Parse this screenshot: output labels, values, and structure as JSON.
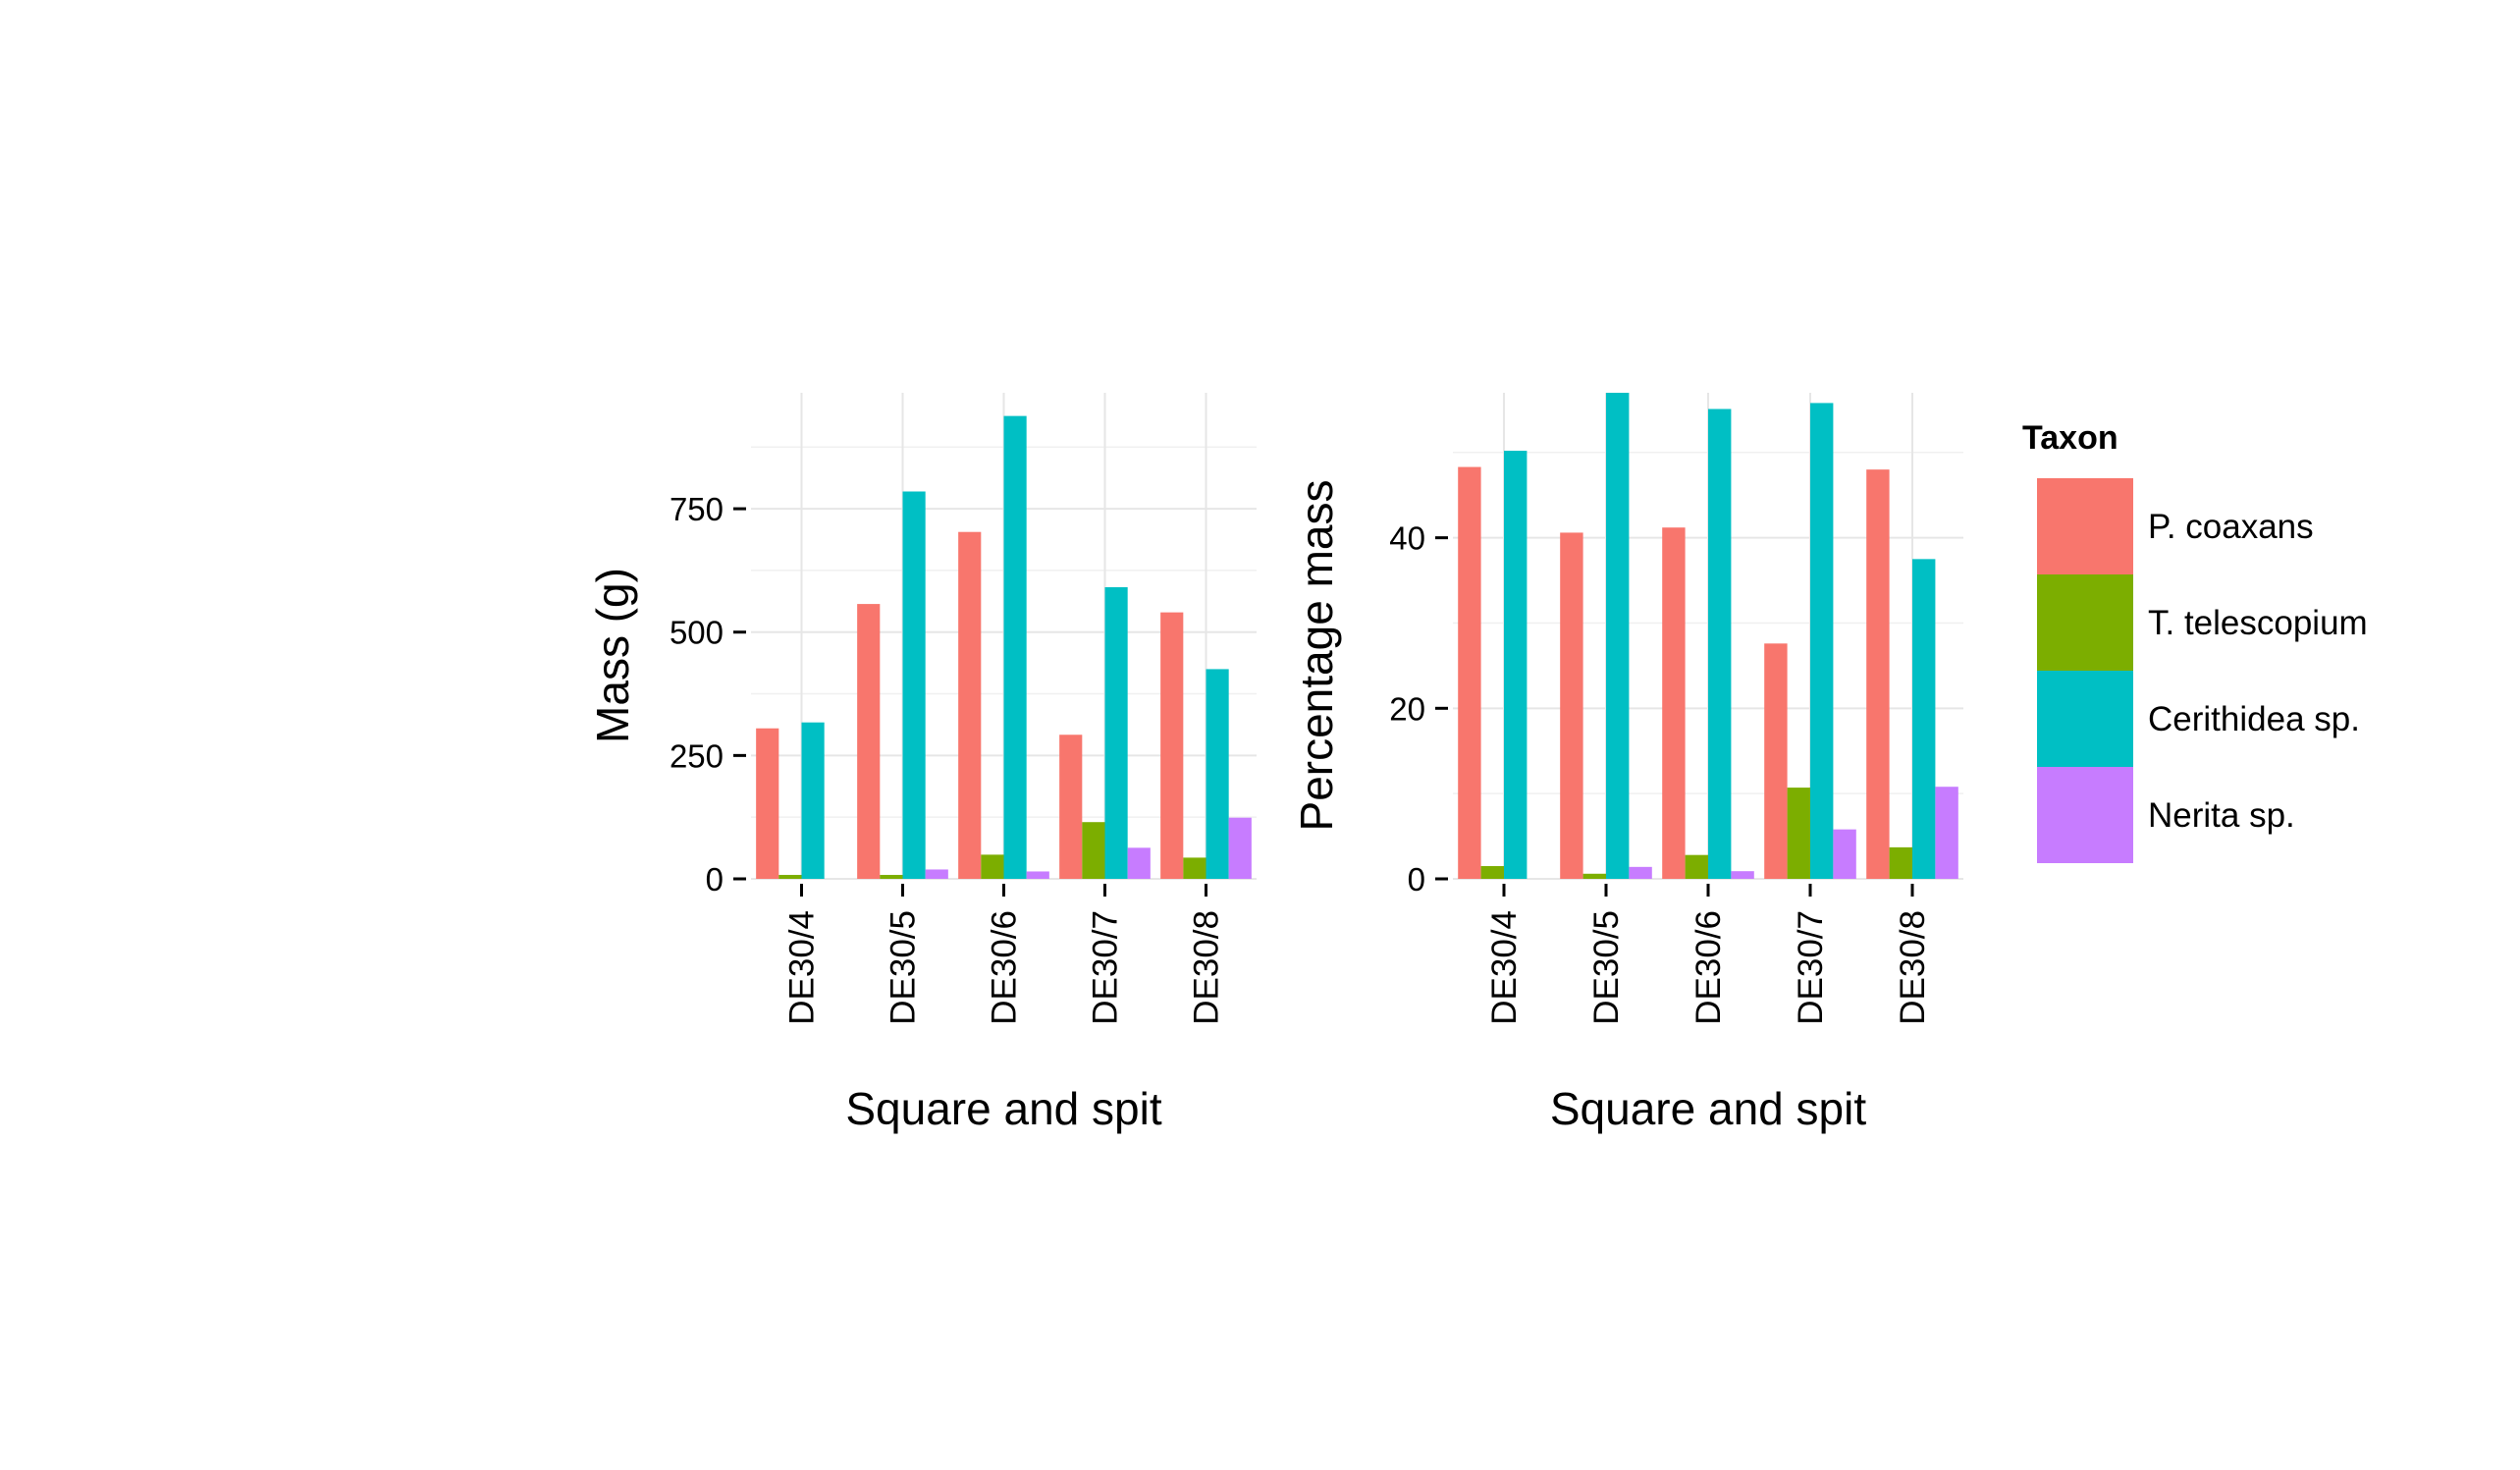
{
  "legend": {
    "title": "Taxon",
    "items": [
      {
        "label": "P. coaxans",
        "color": "#F8766D"
      },
      {
        "label": "T. telescopium",
        "color": "#7CAE00"
      },
      {
        "label": "Cerithidea sp.",
        "color": "#00BFC4"
      },
      {
        "label": "Nerita sp.",
        "color": "#C77CFF"
      }
    ]
  },
  "chart_data": [
    {
      "type": "bar",
      "xlabel": "Square and spit",
      "ylabel": "Mass (g)",
      "categories": [
        "DE30/4",
        "DE30/5",
        "DE30/6",
        "DE30/7",
        "DE30/8"
      ],
      "ylim": [
        0,
        985
      ],
      "yticks": [
        0,
        250,
        500,
        750
      ],
      "grid": true,
      "series": [
        {
          "name": "P. coaxans",
          "values": [
            305,
            557,
            703,
            292,
            540
          ]
        },
        {
          "name": "T. telescopium",
          "values": [
            8,
            8,
            49,
            115,
            43
          ]
        },
        {
          "name": "Cerithidea sp.",
          "values": [
            317,
            785,
            938,
            591,
            425
          ]
        },
        {
          "name": "Nerita sp.",
          "values": [
            0,
            19,
            15,
            63,
            124
          ]
        }
      ]
    },
    {
      "type": "bar",
      "xlabel": "Square and spit",
      "ylabel": "Percentage mass",
      "categories": [
        "DE30/4",
        "DE30/5",
        "DE30/6",
        "DE30/7",
        "DE30/8"
      ],
      "ylim": [
        0,
        57
      ],
      "yticks": [
        0,
        20,
        40
      ],
      "grid": true,
      "series": [
        {
          "name": "P. coaxans",
          "values": [
            48.3,
            40.6,
            41.2,
            27.6,
            48.0
          ]
        },
        {
          "name": "T. telescopium",
          "values": [
            1.5,
            0.6,
            2.8,
            10.7,
            3.7
          ]
        },
        {
          "name": "Cerithidea sp.",
          "values": [
            50.2,
            57.2,
            55.1,
            55.8,
            37.5
          ]
        },
        {
          "name": "Nerita sp.",
          "values": [
            0,
            1.4,
            0.9,
            5.8,
            10.8
          ]
        }
      ]
    }
  ]
}
